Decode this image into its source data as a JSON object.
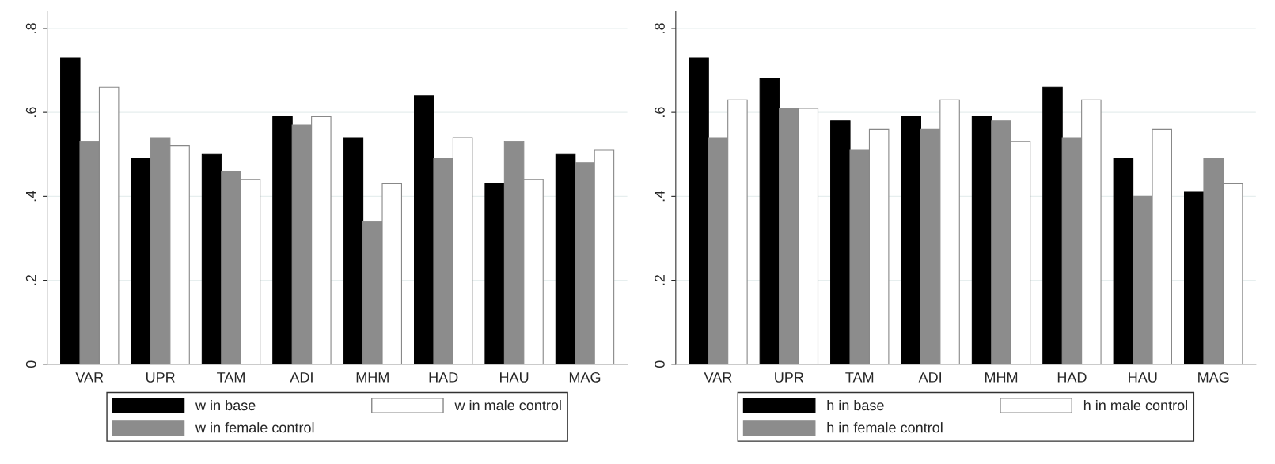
{
  "chart_data": [
    {
      "type": "bar",
      "categories": [
        "VAR",
        "UPR",
        "TAM",
        "ADI",
        "MHM",
        "HAD",
        "HAU",
        "MAG"
      ],
      "ylim": [
        0,
        0.84
      ],
      "yticks": [
        {
          "value": 0,
          "label": "0"
        },
        {
          "value": 0.2,
          "label": ".2"
        },
        {
          "value": 0.4,
          "label": ".4"
        },
        {
          "value": 0.6,
          "label": ".6"
        },
        {
          "value": 0.8,
          "label": ".8"
        }
      ],
      "grid": "y",
      "legend": "bottom",
      "series": [
        {
          "name": "w in base",
          "color": "#000000",
          "values": [
            0.73,
            0.49,
            0.5,
            0.59,
            0.54,
            0.64,
            0.43,
            0.5
          ]
        },
        {
          "name": "w in female control",
          "color": "#8c8c8c",
          "values": [
            0.53,
            0.54,
            0.46,
            0.57,
            0.34,
            0.49,
            0.53,
            0.48
          ]
        },
        {
          "name": "w in male control",
          "color": "#ffffff",
          "values": [
            0.66,
            0.52,
            0.44,
            0.59,
            0.43,
            0.54,
            0.44,
            0.51
          ]
        }
      ]
    },
    {
      "type": "bar",
      "categories": [
        "VAR",
        "UPR",
        "TAM",
        "ADI",
        "MHM",
        "HAD",
        "HAU",
        "MAG"
      ],
      "ylim": [
        0,
        0.84
      ],
      "yticks": [
        {
          "value": 0,
          "label": "0"
        },
        {
          "value": 0.2,
          "label": ".2"
        },
        {
          "value": 0.4,
          "label": ".4"
        },
        {
          "value": 0.6,
          "label": ".6"
        },
        {
          "value": 0.8,
          "label": ".8"
        }
      ],
      "grid": "y",
      "legend": "bottom",
      "series": [
        {
          "name": "h in base",
          "color": "#000000",
          "values": [
            0.73,
            0.68,
            0.58,
            0.59,
            0.59,
            0.66,
            0.49,
            0.41
          ]
        },
        {
          "name": "h in female control",
          "color": "#8c8c8c",
          "values": [
            0.54,
            0.61,
            0.51,
            0.56,
            0.58,
            0.54,
            0.4,
            0.49
          ]
        },
        {
          "name": "h in male control",
          "color": "#ffffff",
          "values": [
            0.63,
            0.61,
            0.56,
            0.63,
            0.53,
            0.63,
            0.56,
            0.43
          ]
        }
      ]
    }
  ]
}
